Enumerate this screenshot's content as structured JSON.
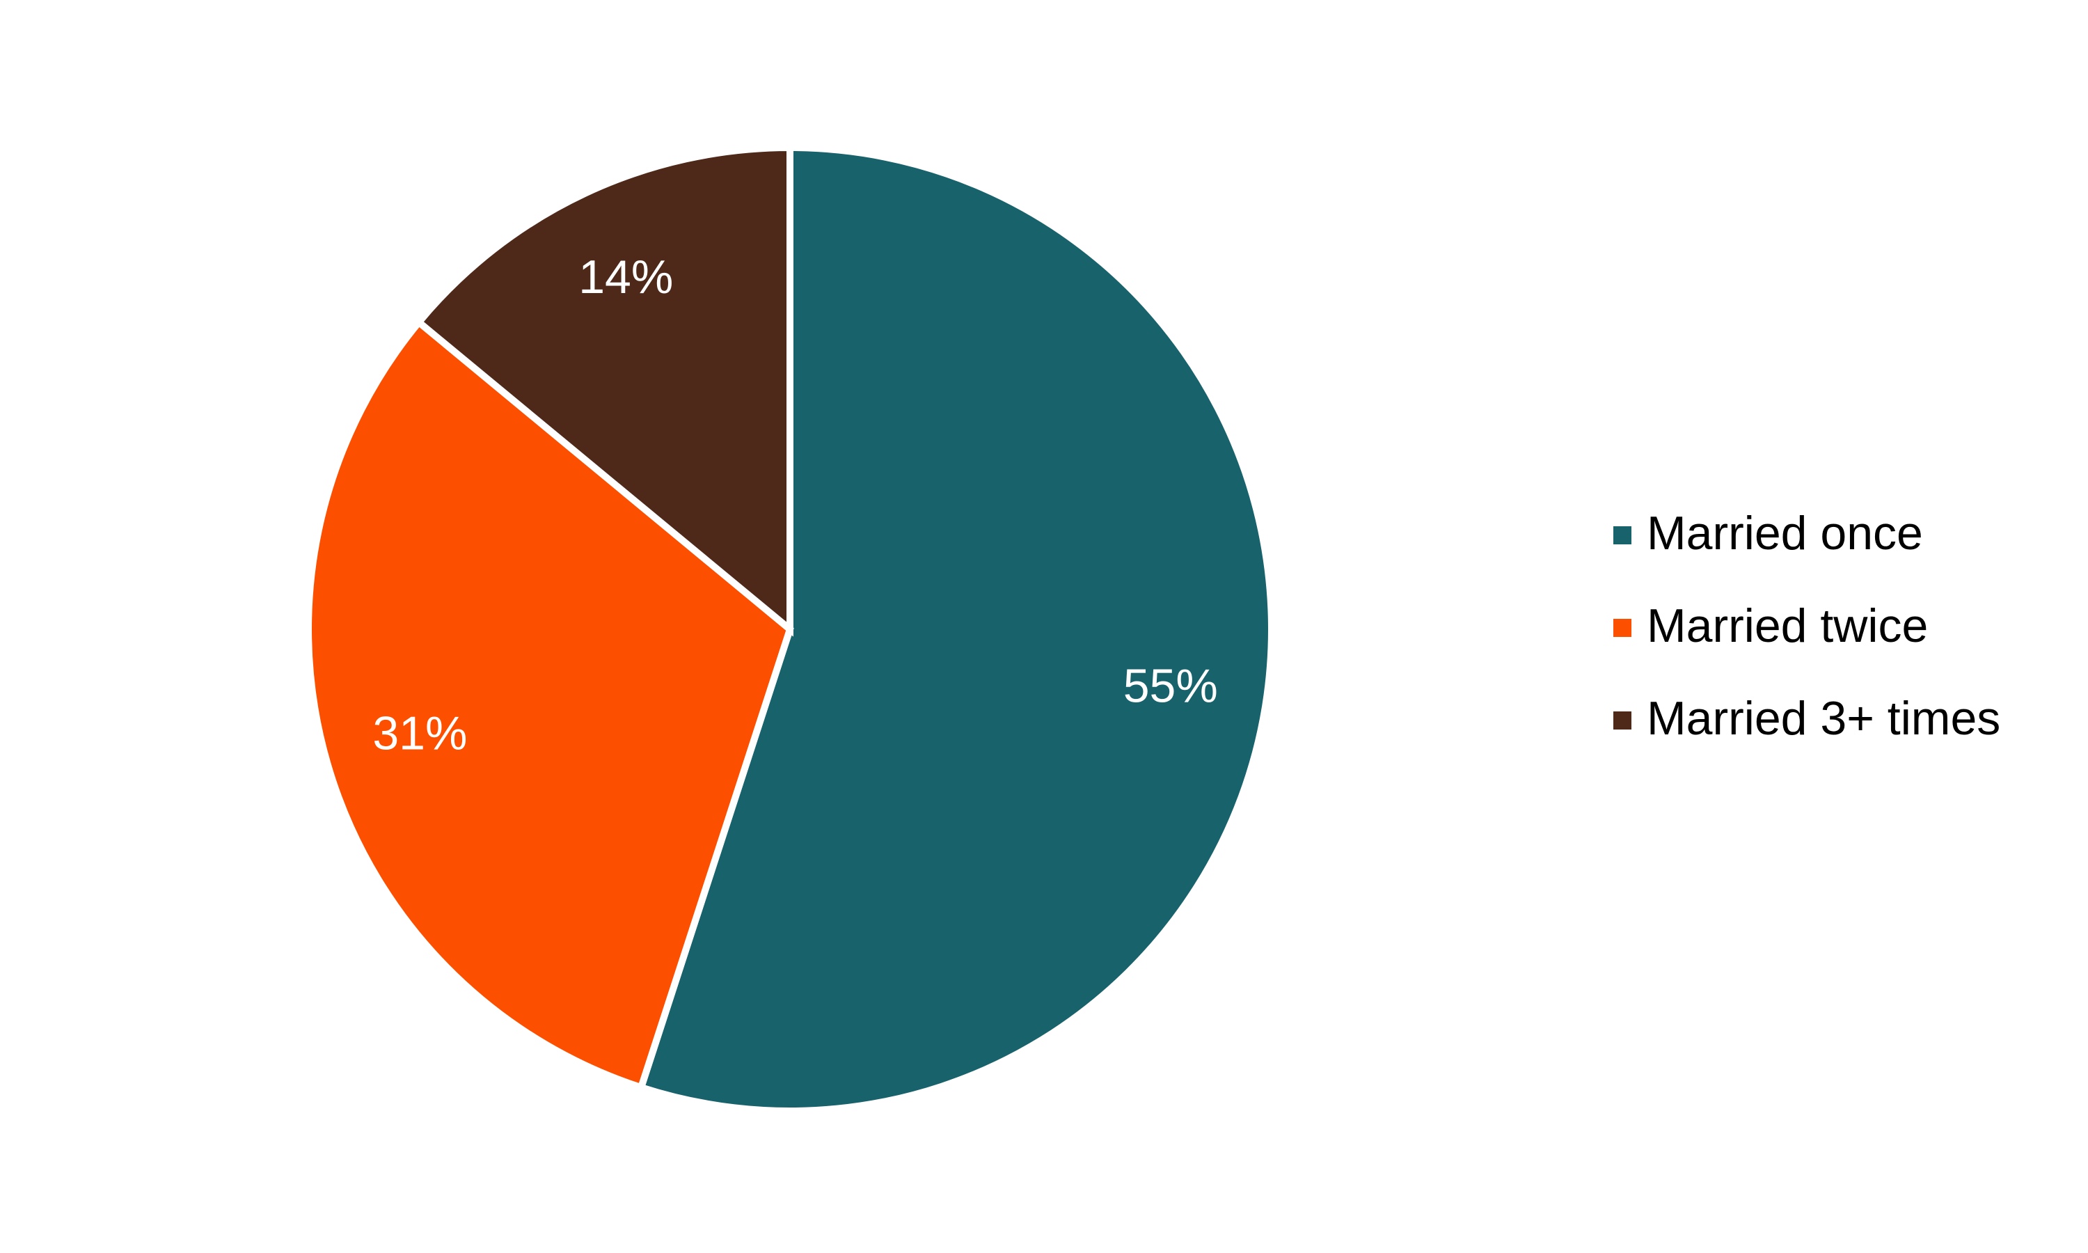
{
  "chart_data": {
    "type": "pie",
    "categories": [
      "Married once",
      "Married twice",
      "Married 3+ times"
    ],
    "values": [
      55,
      31,
      14
    ],
    "value_labels": [
      "55%",
      "31%",
      "14%"
    ],
    "colors": [
      "#18626c",
      "#fc5000",
      "#4e2819"
    ]
  }
}
